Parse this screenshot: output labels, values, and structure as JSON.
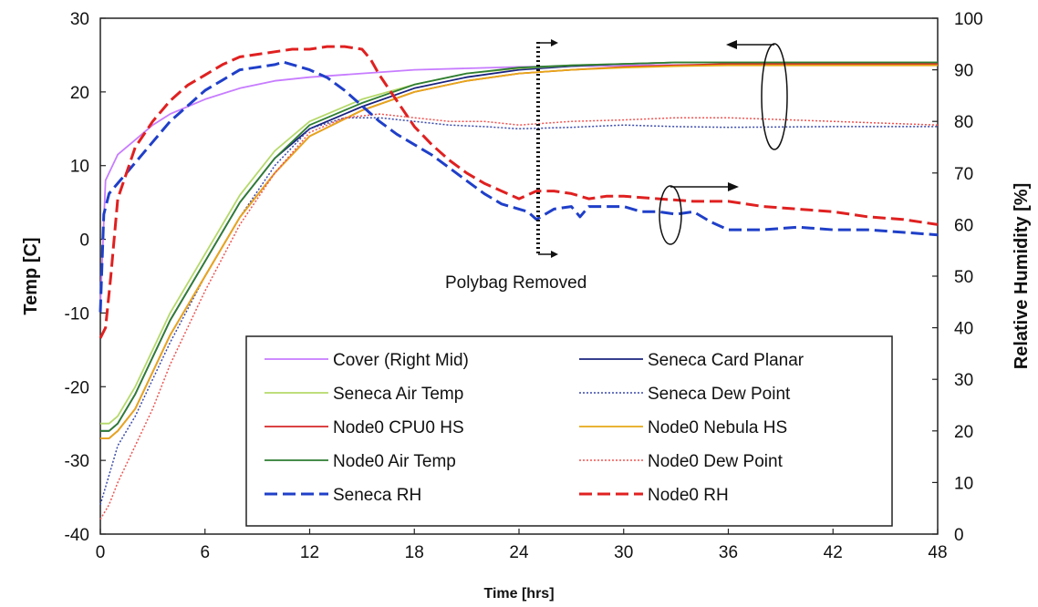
{
  "chart_data": {
    "type": "line",
    "xlabel": "Time [hrs]",
    "ylabel": "Temp [C]",
    "y2label": "Relative Humidity [%]",
    "xlim": [
      0,
      48
    ],
    "ylim": [
      -40,
      30
    ],
    "y2lim": [
      0,
      100
    ],
    "xticks": [
      "0",
      "6",
      "12",
      "18",
      "24",
      "30",
      "36",
      "42",
      "48"
    ],
    "yticks": [
      "-40",
      "-30",
      "-20",
      "-10",
      "0",
      "10",
      "20",
      "30"
    ],
    "y2ticks": [
      "0",
      "10",
      "20",
      "30",
      "40",
      "50",
      "60",
      "70",
      "80",
      "90",
      "100"
    ],
    "grid": false,
    "legend_position": "lower-right",
    "annotation": "Polybag  Removed",
    "series": [
      {
        "name": "Cover (Right Mid)",
        "color": "#c77cff",
        "style": "solid",
        "axis": "left",
        "x": [
          0,
          0.3,
          1,
          2,
          3,
          4,
          6,
          8,
          10,
          12,
          15,
          18,
          21,
          24,
          27,
          30,
          36,
          42,
          48
        ],
        "y": [
          -9,
          8,
          11.5,
          13.5,
          15.5,
          17,
          19,
          20.5,
          21.5,
          22,
          22.5,
          23,
          23.2,
          23.4,
          23.5,
          23.6,
          23.7,
          23.8,
          23.8
        ]
      },
      {
        "name": "Seneca Card Planar",
        "color": "#1a237e",
        "style": "solid",
        "axis": "left",
        "x": [
          0,
          0.5,
          1,
          2,
          3,
          4,
          6,
          8,
          10,
          12,
          15,
          18,
          21,
          24,
          27,
          30,
          33,
          36,
          42,
          48
        ],
        "y": [
          -26,
          -26,
          -25,
          -21,
          -16,
          -11,
          -3,
          5,
          11,
          15,
          18,
          20.5,
          22,
          23,
          23.5,
          23.8,
          24,
          24,
          24,
          24
        ]
      },
      {
        "name": "Seneca Air Temp",
        "color": "#b5d96a",
        "style": "solid",
        "axis": "left",
        "x": [
          0,
          0.5,
          1,
          2,
          3,
          4,
          6,
          8,
          10,
          12,
          15,
          18,
          21,
          24,
          27,
          30,
          33,
          36,
          42,
          48
        ],
        "y": [
          -25,
          -25,
          -24,
          -20,
          -15,
          -10,
          -2,
          6,
          12,
          16,
          19,
          21,
          22.5,
          23.2,
          23.6,
          23.8,
          24,
          24,
          24,
          24
        ]
      },
      {
        "name": "Seneca Dew Point",
        "color": "#3949ab",
        "style": "dotted",
        "axis": "left",
        "x": [
          0,
          0.5,
          1,
          2,
          3,
          4,
          6,
          8,
          10,
          12,
          14,
          16,
          18,
          20,
          22,
          24,
          27,
          30,
          33,
          36,
          42,
          48
        ],
        "y": [
          -36,
          -32,
          -28,
          -24,
          -19,
          -14,
          -5,
          3,
          10,
          15,
          16.5,
          16.5,
          16,
          15.5,
          15.3,
          15,
          15.2,
          15.5,
          15.3,
          15.2,
          15.3,
          15.3
        ]
      },
      {
        "name": "Node0 CPU0 HS",
        "color": "#d62728",
        "style": "solid",
        "axis": "left",
        "x": [
          0,
          0.5,
          1,
          2,
          3,
          4,
          6,
          8,
          10,
          12,
          15,
          18,
          21,
          24,
          27,
          30,
          33,
          36,
          42,
          48
        ],
        "y": [
          -27,
          -27,
          -26,
          -23,
          -18,
          -13,
          -5,
          3,
          9,
          14,
          17.5,
          20,
          21.5,
          22.5,
          23,
          23.4,
          23.6,
          23.8,
          23.8,
          23.8
        ]
      },
      {
        "name": "Node0 Nebula HS",
        "color": "#e6a817",
        "style": "solid",
        "axis": "left",
        "x": [
          0,
          0.5,
          1,
          2,
          3,
          4,
          6,
          8,
          10,
          12,
          15,
          18,
          21,
          24,
          27,
          30,
          33,
          36,
          42,
          48
        ],
        "y": [
          -27,
          -27,
          -26,
          -23,
          -18,
          -13,
          -5,
          3,
          9,
          14,
          17.5,
          20,
          21.5,
          22.5,
          23,
          23.3,
          23.5,
          23.6,
          23.6,
          23.6
        ]
      },
      {
        "name": "Node0 Air Temp",
        "color": "#2e7d32",
        "style": "solid",
        "axis": "left",
        "x": [
          0,
          0.5,
          1,
          2,
          3,
          4,
          6,
          8,
          10,
          12,
          15,
          18,
          21,
          24,
          27,
          30,
          33,
          36,
          42,
          48
        ],
        "y": [
          -26,
          -26,
          -25,
          -21,
          -16,
          -11,
          -3,
          5,
          11,
          15.5,
          18.5,
          21,
          22.5,
          23.3,
          23.6,
          23.8,
          24,
          24,
          24,
          24
        ]
      },
      {
        "name": "Node0 Dew Point",
        "color": "#ef5350",
        "style": "dotted",
        "axis": "left",
        "x": [
          0,
          0.5,
          1,
          2,
          3,
          4,
          6,
          8,
          10,
          12,
          14,
          16,
          18,
          20,
          22,
          24,
          27,
          30,
          33,
          36,
          42,
          48
        ],
        "y": [
          -38,
          -36,
          -33,
          -28,
          -23,
          -17,
          -7,
          2,
          9,
          14.5,
          16.5,
          17,
          16.5,
          16,
          16,
          15.5,
          16,
          16.2,
          16.5,
          16.5,
          16,
          15.5
        ]
      },
      {
        "name": "Seneca RH",
        "color": "#1f3fc9",
        "style": "dashed",
        "axis": "right",
        "x": [
          0,
          0.2,
          0.5,
          1,
          2,
          3,
          4,
          5,
          6,
          7,
          8,
          9,
          10,
          10.5,
          11,
          12,
          13,
          14,
          15,
          16,
          17,
          18,
          19,
          20,
          21,
          22,
          23,
          24,
          24.5,
          25,
          25.5,
          26,
          27,
          27.5,
          28,
          29,
          30,
          31,
          32,
          33,
          34,
          35,
          36,
          38,
          40,
          42,
          44,
          46,
          48
        ],
        "y": [
          43,
          62,
          66,
          68,
          72,
          76,
          80,
          83,
          86,
          88,
          90,
          90.5,
          91,
          91.5,
          91,
          90,
          88.5,
          86,
          83,
          80,
          77.5,
          75.5,
          73.5,
          71,
          68.5,
          66,
          64,
          63,
          62.5,
          61,
          62,
          63,
          63.5,
          61.5,
          63.5,
          63.5,
          63.5,
          62.5,
          62.5,
          62,
          62.5,
          60.5,
          59,
          59,
          59.5,
          59,
          59,
          58.5,
          58
        ]
      },
      {
        "name": "Node0 RH",
        "color": "#e02020",
        "style": "dashed",
        "axis": "right",
        "x": [
          0,
          0.3,
          0.6,
          1,
          2,
          3,
          4,
          5,
          6,
          7,
          8,
          9,
          10,
          11,
          12,
          13,
          14,
          15,
          15.5,
          16,
          17,
          18,
          19,
          20,
          21,
          22,
          23,
          24,
          25,
          26,
          27,
          28,
          29,
          30,
          32,
          34,
          36,
          38,
          40,
          42,
          44,
          46,
          48
        ],
        "y": [
          38,
          40,
          50,
          65,
          75,
          80,
          84,
          87,
          89,
          91,
          92.5,
          93,
          93.5,
          94,
          94,
          94.5,
          94.5,
          94,
          92,
          89,
          84,
          79,
          75.5,
          72.5,
          70,
          68,
          66.5,
          65,
          66.5,
          66.5,
          66,
          65,
          65.5,
          65.5,
          65,
          64.5,
          64.5,
          63.5,
          63,
          62.5,
          61.5,
          61,
          60
        ]
      }
    ]
  }
}
